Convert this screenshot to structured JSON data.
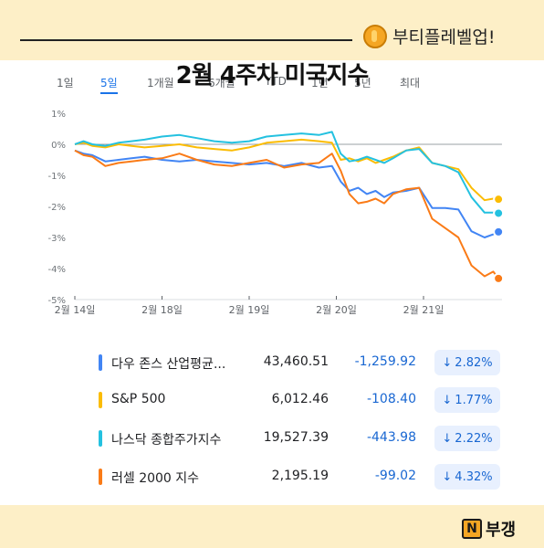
{
  "header": {
    "brand_name": "부티플레벨업!",
    "brand_icon": "coin-icon",
    "title": "2월 4주차 미국지수"
  },
  "range_tabs": [
    {
      "label": "1일",
      "active": false
    },
    {
      "label": "5일",
      "active": true
    },
    {
      "label": "1개월",
      "active": false
    },
    {
      "label": "6개월",
      "active": false
    },
    {
      "label": "YTD",
      "active": false
    },
    {
      "label": "1년",
      "active": false
    },
    {
      "label": "5년",
      "active": false
    },
    {
      "label": "최대",
      "active": false
    }
  ],
  "chart_data": {
    "type": "line",
    "y_ticks": [
      "1%",
      "0%",
      "-1%",
      "-2%",
      "-3%",
      "-4%",
      "-5%"
    ],
    "ylim": [
      -5,
      1
    ],
    "x_tick_labels": [
      "2월 14일",
      "2월 18일",
      "2월 19일",
      "2월 20일",
      "2월 21일"
    ],
    "x_ticks": [
      0,
      1,
      2,
      3,
      4
    ],
    "xlim": [
      0,
      4.9
    ],
    "baseline": 0,
    "series": [
      {
        "name": "다우 존스 산업평균지수",
        "color": "#4285f4",
        "x": [
          0,
          0.1,
          0.2,
          0.35,
          0.5,
          0.65,
          0.8,
          1.0,
          1.2,
          1.4,
          1.6,
          1.8,
          2.0,
          2.2,
          2.4,
          2.6,
          2.8,
          2.95,
          3.05,
          3.15,
          3.25,
          3.35,
          3.45,
          3.55,
          3.65,
          3.8,
          3.95,
          4.1,
          4.25,
          4.4,
          4.55,
          4.7,
          4.8,
          4.86
        ],
        "y": [
          -0.2,
          -0.3,
          -0.35,
          -0.55,
          -0.5,
          -0.45,
          -0.4,
          -0.5,
          -0.55,
          -0.5,
          -0.55,
          -0.6,
          -0.65,
          -0.6,
          -0.7,
          -0.6,
          -0.75,
          -0.7,
          -1.2,
          -1.5,
          -1.4,
          -1.6,
          -1.5,
          -1.7,
          -1.55,
          -1.5,
          -1.4,
          -2.05,
          -2.05,
          -2.1,
          -2.8,
          -3.0,
          -2.9,
          -2.82
        ]
      },
      {
        "name": "S&P 500",
        "color": "#fbbc04",
        "x": [
          0,
          0.1,
          0.2,
          0.35,
          0.5,
          0.65,
          0.8,
          1.0,
          1.2,
          1.4,
          1.6,
          1.8,
          2.0,
          2.2,
          2.4,
          2.6,
          2.8,
          2.95,
          3.05,
          3.15,
          3.25,
          3.35,
          3.45,
          3.55,
          3.65,
          3.8,
          3.95,
          4.1,
          4.25,
          4.4,
          4.55,
          4.7,
          4.8,
          4.86
        ],
        "y": [
          0.0,
          0.05,
          -0.05,
          -0.1,
          0.0,
          -0.05,
          -0.1,
          -0.05,
          0.0,
          -0.1,
          -0.15,
          -0.2,
          -0.1,
          0.05,
          0.1,
          0.15,
          0.1,
          0.05,
          -0.5,
          -0.45,
          -0.55,
          -0.45,
          -0.6,
          -0.5,
          -0.4,
          -0.2,
          -0.1,
          -0.6,
          -0.7,
          -0.8,
          -1.4,
          -1.8,
          -1.75,
          -1.77
        ]
      },
      {
        "name": "나스닥 종합주가지수",
        "color": "#24c1e0",
        "x": [
          0,
          0.1,
          0.2,
          0.35,
          0.5,
          0.65,
          0.8,
          1.0,
          1.2,
          1.4,
          1.6,
          1.8,
          2.0,
          2.2,
          2.4,
          2.6,
          2.8,
          2.95,
          3.05,
          3.15,
          3.25,
          3.35,
          3.45,
          3.55,
          3.65,
          3.8,
          3.95,
          4.1,
          4.25,
          4.4,
          4.55,
          4.7,
          4.8,
          4.86
        ],
        "y": [
          0.0,
          0.1,
          0.0,
          -0.05,
          0.05,
          0.1,
          0.15,
          0.25,
          0.3,
          0.2,
          0.1,
          0.05,
          0.1,
          0.25,
          0.3,
          0.35,
          0.3,
          0.4,
          -0.3,
          -0.55,
          -0.5,
          -0.4,
          -0.5,
          -0.6,
          -0.45,
          -0.2,
          -0.15,
          -0.6,
          -0.7,
          -0.9,
          -1.7,
          -2.2,
          -2.2,
          -2.22
        ]
      },
      {
        "name": "러셀 2000 지수",
        "color": "#fa7b17",
        "x": [
          0,
          0.1,
          0.2,
          0.35,
          0.5,
          0.65,
          0.8,
          1.0,
          1.2,
          1.4,
          1.6,
          1.8,
          2.0,
          2.2,
          2.4,
          2.6,
          2.8,
          2.95,
          3.05,
          3.15,
          3.25,
          3.35,
          3.45,
          3.55,
          3.65,
          3.8,
          3.95,
          4.1,
          4.25,
          4.4,
          4.55,
          4.7,
          4.8,
          4.86
        ],
        "y": [
          -0.2,
          -0.35,
          -0.4,
          -0.7,
          -0.6,
          -0.55,
          -0.5,
          -0.45,
          -0.3,
          -0.5,
          -0.65,
          -0.7,
          -0.6,
          -0.5,
          -0.75,
          -0.65,
          -0.6,
          -0.3,
          -0.85,
          -1.6,
          -1.9,
          -1.85,
          -1.75,
          -1.9,
          -1.6,
          -1.45,
          -1.4,
          -2.4,
          -2.7,
          -3.0,
          -3.9,
          -4.25,
          -4.1,
          -4.32
        ]
      }
    ]
  },
  "tickers": [
    {
      "name": "다우 존스 산업평균...",
      "price": "43,460.51",
      "change": "-1,259.92",
      "pct": "2.82%",
      "color": "#4285f4"
    },
    {
      "name": "S&P 500",
      "price": "6,012.46",
      "change": "-108.40",
      "pct": "1.77%",
      "color": "#fbbc04"
    },
    {
      "name": "나스닥 종합주가지수",
      "price": "19,527.39",
      "change": "-443.98",
      "pct": "2.22%",
      "color": "#24c1e0"
    },
    {
      "name": "러셀 2000 지수",
      "price": "2,195.19",
      "change": "-99.02",
      "pct": "4.32%",
      "color": "#fa7b17"
    }
  ],
  "footer": {
    "logo_letter": "N",
    "logo_text": "부갱"
  }
}
